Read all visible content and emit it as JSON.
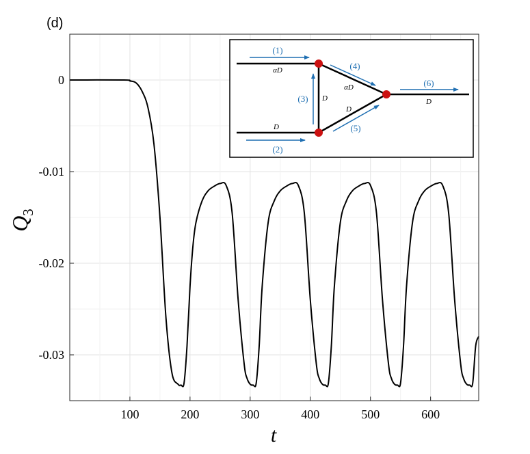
{
  "panel_label": "(d)",
  "chart_data": {
    "type": "line",
    "xlabel": "t",
    "ylabel_base": "Q",
    "ylabel_sub": "3",
    "xlim": [
      0,
      680
    ],
    "ylim": [
      -0.035,
      0.005
    ],
    "x_ticks": [
      100,
      200,
      300,
      400,
      500,
      600
    ],
    "x_tick_labels": [
      "100",
      "200",
      "300",
      "400",
      "500",
      "600"
    ],
    "y_ticks": [
      0,
      -0.01,
      -0.02,
      -0.03
    ],
    "y_tick_labels": [
      "0",
      "-0.01",
      "-0.02",
      "-0.03"
    ],
    "grid": true,
    "series": [
      {
        "color": "#000000",
        "x": [
          0,
          90,
          100,
          110,
          120,
          130,
          140,
          150,
          160,
          170,
          180,
          185,
          190,
          195,
          200,
          205,
          210,
          220,
          230,
          240,
          250,
          260,
          270,
          280,
          290,
          295,
          300,
          305,
          310,
          315,
          320,
          330,
          340,
          350,
          360,
          370,
          380,
          390,
          400,
          410,
          415,
          420,
          425,
          430,
          435,
          440,
          450,
          460,
          470,
          480,
          490,
          500,
          510,
          520,
          530,
          535,
          540,
          545,
          550,
          555,
          560,
          570,
          580,
          590,
          600,
          610,
          620,
          630,
          640,
          650,
          655,
          660,
          665,
          670,
          675,
          680
        ],
        "y": [
          0,
          0,
          -0.0001,
          -0.0003,
          -0.0012,
          -0.003,
          -0.007,
          -0.015,
          -0.026,
          -0.032,
          -0.0332,
          -0.0333,
          -0.0331,
          -0.029,
          -0.0225,
          -0.018,
          -0.0155,
          -0.0132,
          -0.0121,
          -0.0116,
          -0.0113,
          -0.0115,
          -0.0145,
          -0.024,
          -0.031,
          -0.0326,
          -0.0332,
          -0.0333,
          -0.0331,
          -0.029,
          -0.0225,
          -0.0155,
          -0.0132,
          -0.0121,
          -0.0116,
          -0.0113,
          -0.0115,
          -0.0145,
          -0.024,
          -0.031,
          -0.0326,
          -0.0332,
          -0.0333,
          -0.0331,
          -0.029,
          -0.0225,
          -0.0155,
          -0.0132,
          -0.0121,
          -0.0116,
          -0.0113,
          -0.0115,
          -0.0145,
          -0.024,
          -0.031,
          -0.0326,
          -0.0332,
          -0.0333,
          -0.0331,
          -0.029,
          -0.0225,
          -0.0155,
          -0.0132,
          -0.0121,
          -0.0116,
          -0.0113,
          -0.0115,
          -0.0145,
          -0.024,
          -0.031,
          -0.0326,
          -0.0332,
          -0.0333,
          -0.0331,
          -0.029,
          -0.028
        ]
      }
    ]
  },
  "inset": {
    "arrow_color": "#1f6fb2",
    "node_color": "#cc1111",
    "arrow_labels": [
      "(1)",
      "(2)",
      "(3)",
      "(4)",
      "(5)",
      "(6)"
    ],
    "edge_labels": [
      "αD",
      "D",
      "D",
      "αD",
      "D",
      "D"
    ]
  }
}
